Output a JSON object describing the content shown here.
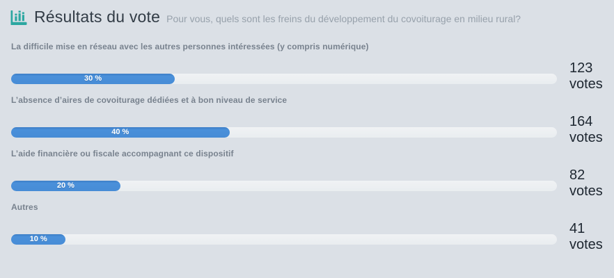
{
  "header": {
    "title": "Résultats du vote",
    "subtitle": "Pour vous, quels sont les freins du développement du covoiturage en milieu rural?",
    "icon": "bar-chart-icon"
  },
  "colors": {
    "background": "#dbe0e6",
    "accent_teal": "#2ca7a1",
    "bar_fill_blue": "#478cd6",
    "bar_track": "#edf0f3",
    "title_text": "#323c46",
    "subtitle_text": "#97a1ab",
    "option_label_text": "#78828e",
    "votes_text": "#1d2630",
    "percent_text": "#ffffff"
  },
  "chart_data": {
    "type": "bar",
    "orientation": "horizontal",
    "title": "Résultats du vote",
    "subtitle": "Pour vous, quels sont les freins du développement du covoiturage en milieu rural?",
    "categories": [
      "La difficile mise en réseau avec les autres personnes intéressées (y compris numérique)",
      "L’absence d’aires de covoiturage dédiées et à bon niveau de service",
      "L’aide financière ou fiscale accompagnant ce dispositif",
      "Autres"
    ],
    "series": [
      {
        "name": "percent",
        "unit": "%",
        "values": [
          30,
          40,
          20,
          10
        ]
      },
      {
        "name": "votes",
        "values": [
          123,
          164,
          82,
          41
        ]
      }
    ],
    "xlim": [
      0,
      100
    ],
    "grid": false,
    "legend": false,
    "data_labels": [
      "30 %",
      "40 %",
      "20 %",
      "10 %"
    ]
  },
  "results": [
    {
      "label": "La difficile mise en réseau avec les autres personnes intéressées (y compris numérique)",
      "percent": 30,
      "percent_label": "30 %",
      "votes": "123",
      "votes_word": "votes"
    },
    {
      "label": "L’absence d’aires de covoiturage dédiées et à bon niveau de service",
      "percent": 40,
      "percent_label": "40 %",
      "votes": "164",
      "votes_word": "votes"
    },
    {
      "label": "L’aide financière ou fiscale accompagnant ce dispositif",
      "percent": 20,
      "percent_label": "20 %",
      "votes": "82",
      "votes_word": "votes"
    },
    {
      "label": "Autres",
      "percent": 10,
      "percent_label": "10 %",
      "votes": "41",
      "votes_word": "votes"
    }
  ]
}
